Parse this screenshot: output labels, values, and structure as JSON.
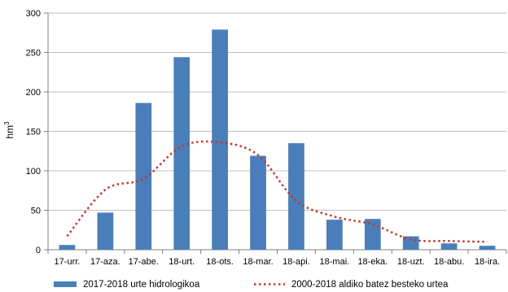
{
  "colors": {
    "bar": "#4a7ebb",
    "line": "#c0392b",
    "axis": "#808080",
    "grid": "#bfbfbf"
  },
  "chart_data": {
    "type": "bar",
    "ylabel": "hm",
    "ylabel_superscript": "3",
    "ylim": [
      0,
      300
    ],
    "yticks": [
      0,
      50,
      100,
      150,
      200,
      250,
      300
    ],
    "grid": true,
    "legend_position": "bottom",
    "categories": [
      "17-urr.",
      "17-aza.",
      "17-abe.",
      "18-urt.",
      "18-ots.",
      "18-mar.",
      "18-api.",
      "18-mai.",
      "18-eka.",
      "18-uzt.",
      "18-abu.",
      "18-ira."
    ],
    "series": [
      {
        "name": "2017-2018 urte hidrologikoa",
        "type": "bar",
        "values": [
          6,
          47,
          186,
          244,
          279,
          119,
          135,
          38,
          39,
          17,
          8,
          5
        ]
      },
      {
        "name": "2000-2018 aldiko batez besteko urtea",
        "type": "line",
        "style": "dotted",
        "values": [
          17,
          76,
          90,
          131,
          136,
          120,
          62,
          42,
          32,
          13,
          11,
          10
        ]
      }
    ]
  }
}
